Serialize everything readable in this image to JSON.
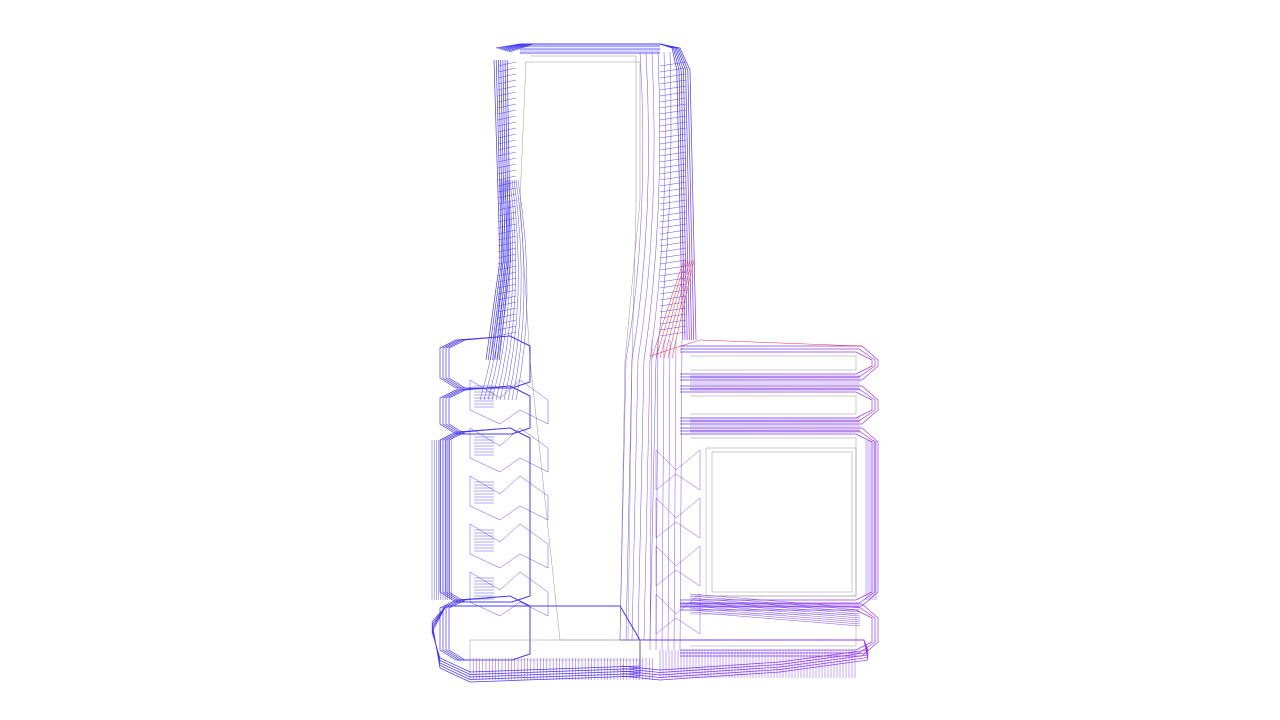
{
  "scene": {
    "object": "wireframe-mesh",
    "background_color": "#ffffff",
    "colors": {
      "primary": "#4a3cf0",
      "secondary": "#7a3cf0",
      "gray": "#8a8a9a",
      "highlight": "#e8182a"
    }
  }
}
